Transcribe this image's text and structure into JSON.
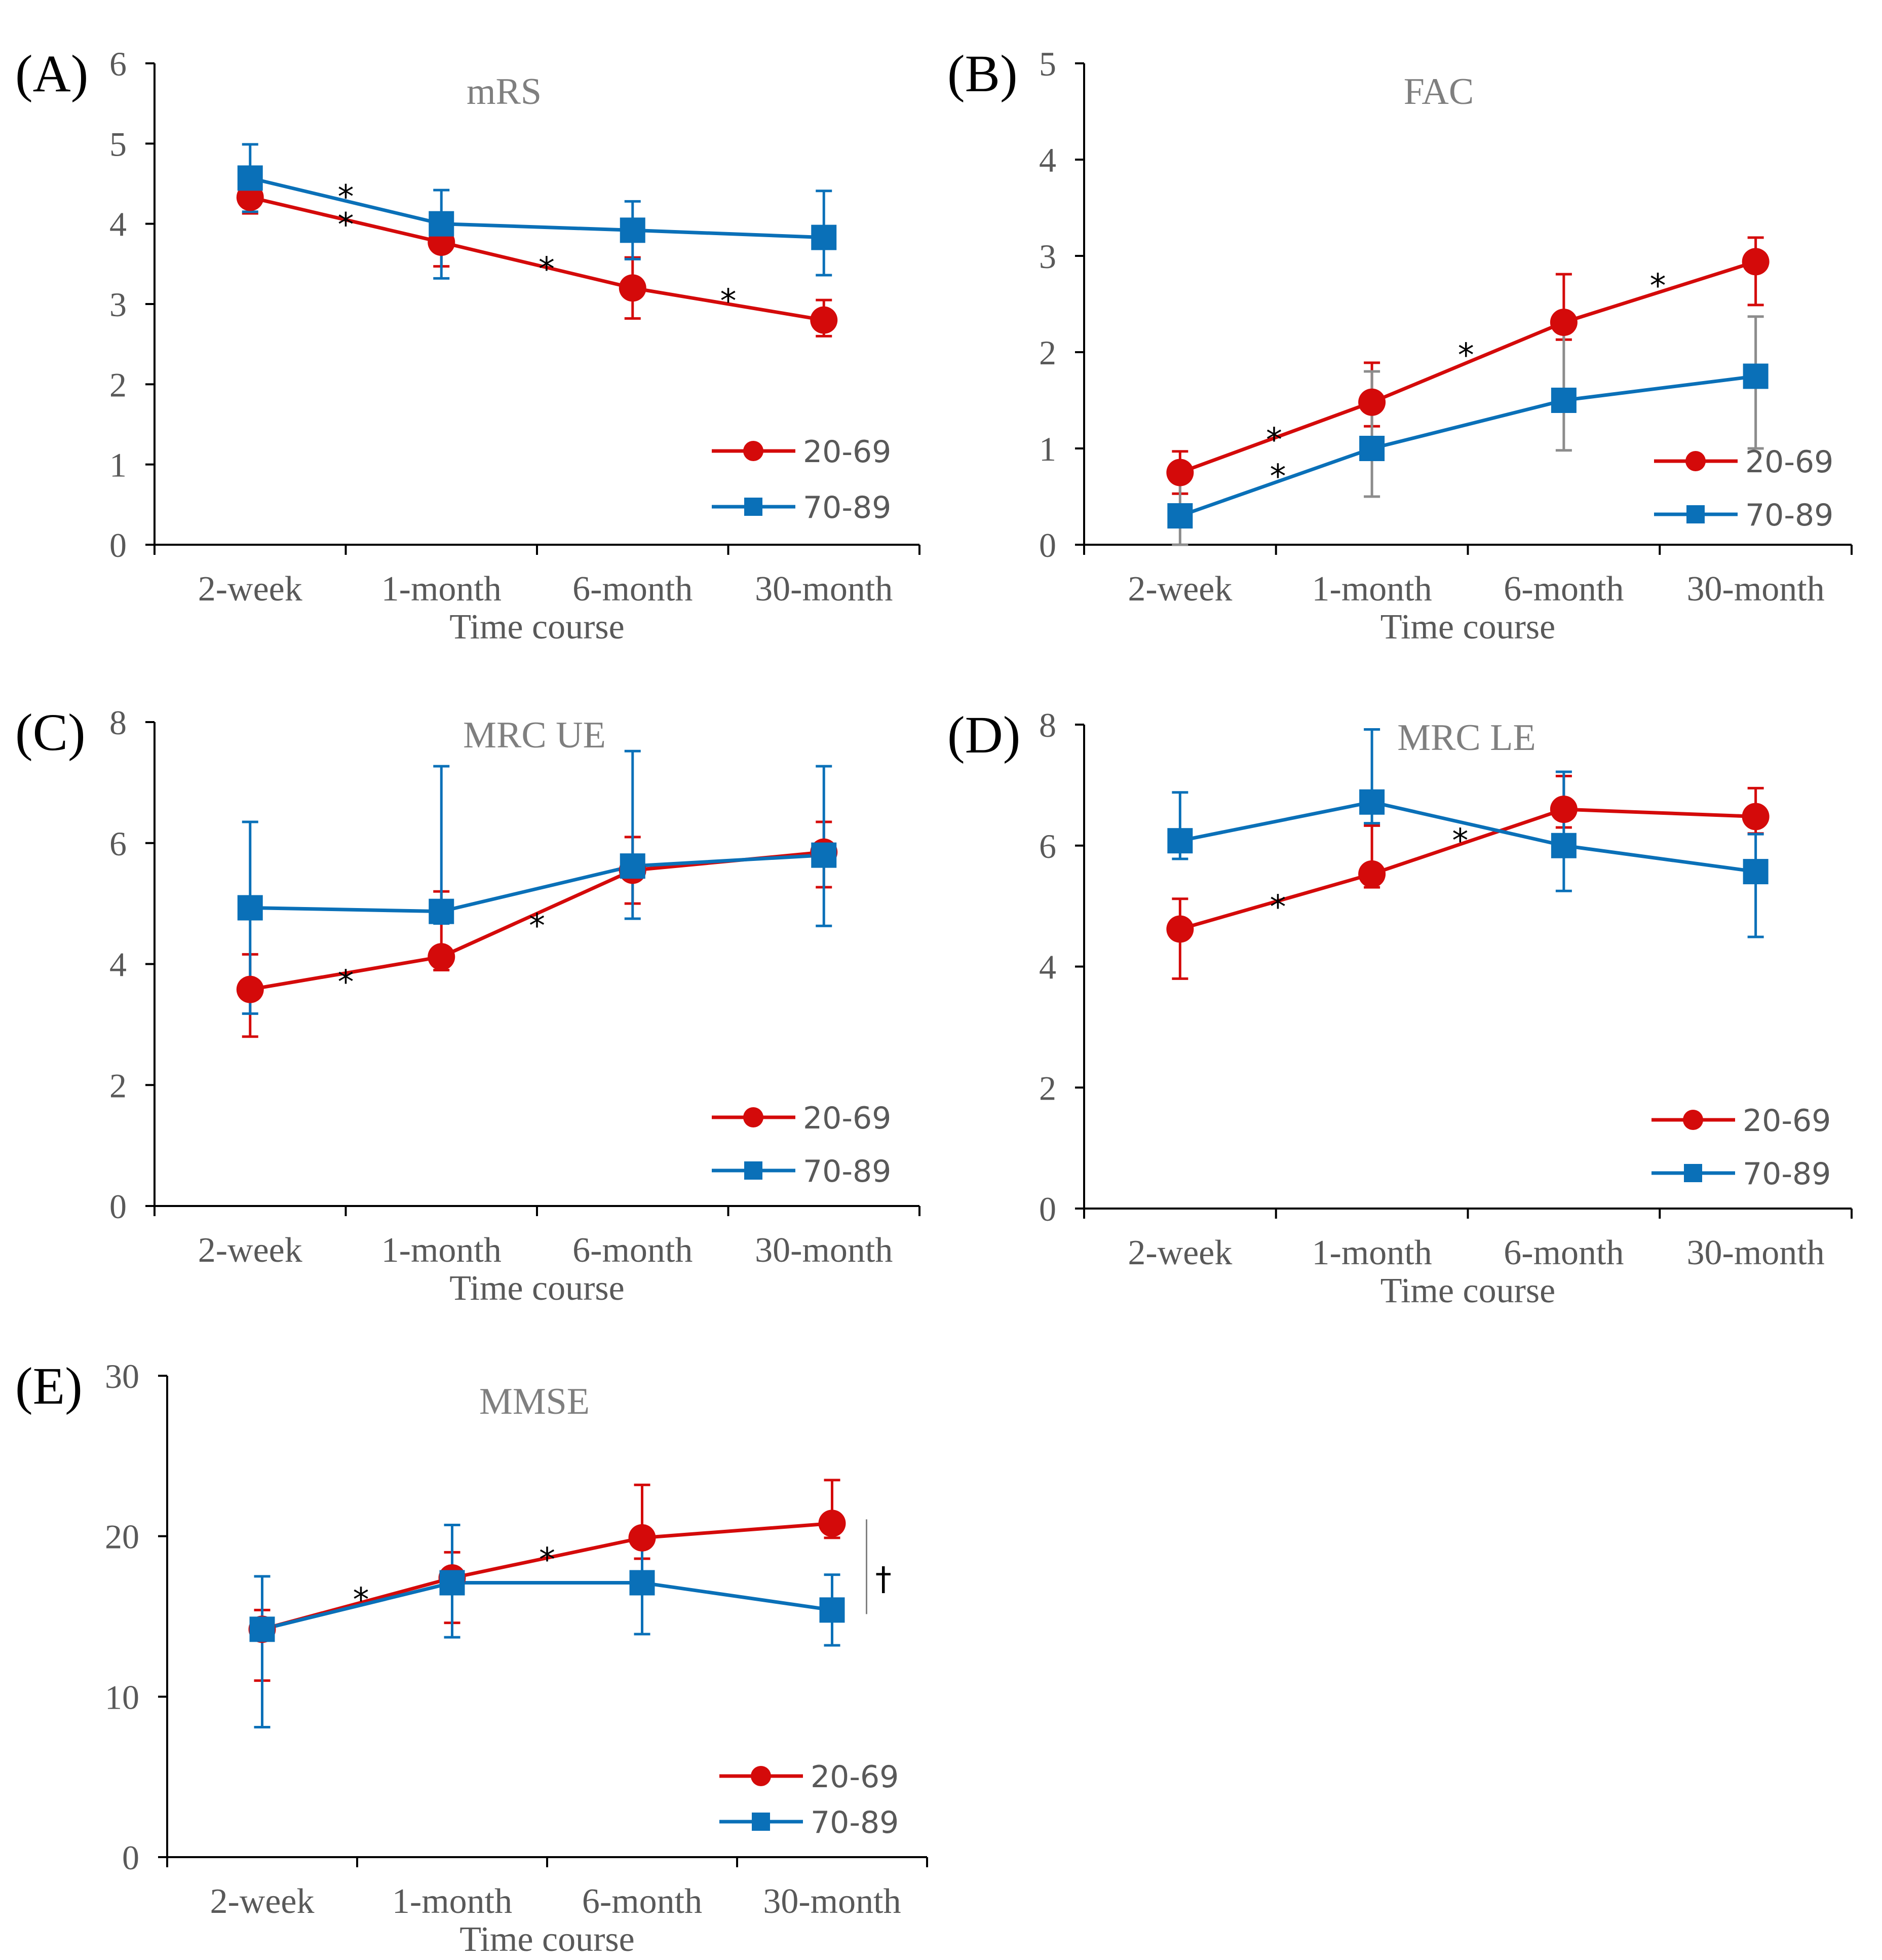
{
  "colors": {
    "series_20_69": "#d40a0a",
    "series_70_89": "#0a70b8",
    "axis": "#000000",
    "errorbar_b_70_89": "#8c8c8c"
  },
  "chart_data": [
    {
      "panel": "(A)",
      "type": "line",
      "title": "mRS",
      "xlabel": "Time course",
      "ylabel": "",
      "categories": [
        "2-week",
        "1-month",
        "6-month",
        "30-month"
      ],
      "ylim": [
        0,
        6
      ],
      "yticks": [
        0,
        1,
        2,
        3,
        4,
        5,
        6
      ],
      "series": [
        {
          "name": "20-69",
          "marker": "circle",
          "values": [
            4.33,
            3.77,
            3.2,
            2.8
          ],
          "err_upper": [
            0.2,
            0.3,
            0.38,
            0.25
          ],
          "err_lower": [
            0.2,
            0.3,
            0.38,
            0.2
          ]
        },
        {
          "name": "70-89",
          "marker": "square",
          "values": [
            4.57,
            4.0,
            3.92,
            3.83
          ],
          "err_upper": [
            0.42,
            0.42,
            0.36,
            0.58
          ],
          "err_lower": [
            0.42,
            0.68,
            0.36,
            0.47
          ]
        }
      ],
      "annotations": [
        {
          "text": "*",
          "x": 0.5,
          "y": 4.35
        },
        {
          "text": "*",
          "x": 0.5,
          "y": 4.0
        },
        {
          "text": "*",
          "x": 1.55,
          "y": 3.45
        },
        {
          "text": "*",
          "x": 2.5,
          "y": 3.05
        }
      ],
      "legend": "bottom-right"
    },
    {
      "panel": "(B)",
      "type": "line",
      "title": "FAC",
      "xlabel": "Time course",
      "ylabel": "",
      "categories": [
        "2-week",
        "1-month",
        "6-month",
        "30-month"
      ],
      "ylim": [
        0,
        5
      ],
      "yticks": [
        0,
        1,
        2,
        3,
        4,
        5
      ],
      "series": [
        {
          "name": "20-69",
          "marker": "circle",
          "values": [
            0.75,
            1.48,
            2.31,
            2.94
          ],
          "err_upper": [
            0.22,
            0.41,
            0.5,
            0.25
          ],
          "err_lower": [
            0.22,
            0.25,
            0.18,
            0.45
          ]
        },
        {
          "name": "70-89",
          "marker": "square",
          "values": [
            0.3,
            1.0,
            1.5,
            1.75
          ],
          "err_upper": [
            0.4,
            0.8,
            0.8,
            0.62
          ],
          "err_lower": [
            0.3,
            0.5,
            0.52,
            0.75
          ]
        }
      ],
      "annotations": [
        {
          "text": "*",
          "x": 0.49,
          "y": 1.1
        },
        {
          "text": "*",
          "x": 0.51,
          "y": 0.72
        },
        {
          "text": "*",
          "x": 1.49,
          "y": 1.98
        },
        {
          "text": "*",
          "x": 2.49,
          "y": 2.7
        }
      ],
      "legend": "bottom-right"
    },
    {
      "panel": "(C)",
      "type": "line",
      "title": "MRC UE",
      "xlabel": "Time course",
      "ylabel": "",
      "categories": [
        "2-week",
        "1-month",
        "6-month",
        "30-month"
      ],
      "ylim": [
        0,
        8
      ],
      "yticks": [
        0,
        2,
        4,
        6,
        8
      ],
      "series": [
        {
          "name": "20-69",
          "marker": "circle",
          "values": [
            3.58,
            4.12,
            5.55,
            5.85
          ],
          "err_upper": [
            0.58,
            1.08,
            0.55,
            0.5
          ],
          "err_lower": [
            0.78,
            0.22,
            0.55,
            0.58
          ]
        },
        {
          "name": "70-89",
          "marker": "square",
          "values": [
            4.93,
            4.87,
            5.62,
            5.8
          ],
          "err_upper": [
            1.42,
            2.4,
            1.9,
            1.47
          ],
          "err_lower": [
            1.75,
            0.2,
            0.87,
            1.17
          ]
        }
      ],
      "annotations": [
        {
          "text": "*",
          "x": 0.5,
          "y": 3.72
        },
        {
          "text": "*",
          "x": 1.5,
          "y": 4.65
        }
      ],
      "legend": "bottom-right"
    },
    {
      "panel": "(D)",
      "type": "line",
      "title": "MRC LE",
      "xlabel": "Time course",
      "ylabel": "",
      "categories": [
        "2-week",
        "1-month",
        "6-month",
        "30-month"
      ],
      "ylim": [
        0,
        8
      ],
      "yticks": [
        0,
        2,
        4,
        6,
        8
      ],
      "series": [
        {
          "name": "20-69",
          "marker": "circle",
          "values": [
            4.62,
            5.53,
            6.6,
            6.48
          ],
          "err_upper": [
            0.5,
            0.8,
            0.55,
            0.47
          ],
          "err_lower": [
            0.82,
            0.22,
            0.3,
            0.28
          ]
        },
        {
          "name": "70-89",
          "marker": "square",
          "values": [
            6.08,
            6.72,
            6.0,
            5.57
          ],
          "err_upper": [
            0.8,
            1.2,
            1.22,
            0.62
          ],
          "err_lower": [
            0.3,
            0.35,
            0.75,
            1.08
          ]
        }
      ],
      "annotations": [
        {
          "text": "*",
          "x": 0.51,
          "y": 5.0
        },
        {
          "text": "*",
          "x": 1.46,
          "y": 6.1
        }
      ],
      "legend": "bottom-right"
    },
    {
      "panel": "(E)",
      "type": "line",
      "title": "MMSE",
      "xlabel": "Time course",
      "ylabel": "",
      "categories": [
        "2-week",
        "1-month",
        "6-month",
        "30-month"
      ],
      "ylim": [
        0,
        30
      ],
      "yticks": [
        0,
        10,
        20,
        30
      ],
      "series": [
        {
          "name": "20-69",
          "marker": "circle",
          "values": [
            14.2,
            17.4,
            19.9,
            20.8
          ],
          "err_upper": [
            1.2,
            1.6,
            3.3,
            2.7
          ],
          "err_lower": [
            3.2,
            2.8,
            1.3,
            0.9
          ]
        },
        {
          "name": "70-89",
          "marker": "square",
          "values": [
            14.2,
            17.1,
            17.1,
            15.4
          ],
          "err_upper": [
            3.3,
            3.6,
            2.6,
            2.2
          ],
          "err_lower": [
            6.1,
            3.4,
            3.2,
            2.2
          ]
        }
      ],
      "annotations": [
        {
          "text": "*",
          "x": 0.52,
          "y": 16.1
        },
        {
          "text": "*",
          "x": 1.5,
          "y": 18.6
        },
        {
          "text": "†",
          "x": 3.27,
          "y": 17.4
        }
      ],
      "significance_bracket": {
        "text": "†",
        "series_values_at": 3,
        "y_top": 20.8,
        "y_bottom": 15.4
      },
      "legend": "bottom-right"
    }
  ]
}
